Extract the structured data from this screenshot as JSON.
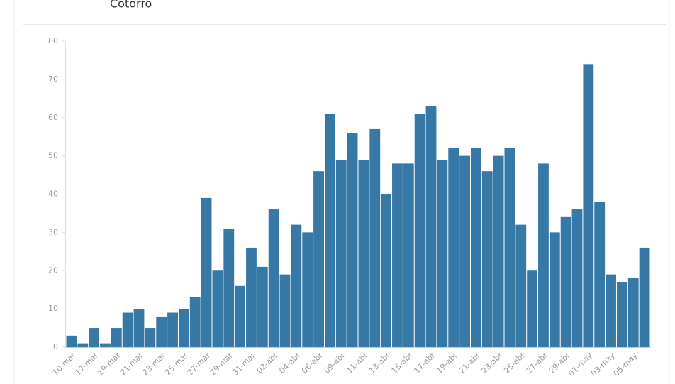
{
  "chart_data": {
    "type": "bar",
    "title": "Cotorro",
    "categories": [
      "10-mar",
      null,
      "17-mar",
      null,
      "19-mar",
      null,
      "21-mar",
      null,
      "23-mar",
      null,
      "25-mar",
      null,
      "27-mar",
      null,
      "29-mar",
      null,
      "31-mar",
      null,
      "02-abr",
      null,
      "04-abr",
      null,
      "06-abr",
      null,
      "09-abr",
      null,
      "11-abr",
      null,
      "13-abr",
      null,
      "15-abr",
      null,
      "17-abr",
      null,
      "19-abr",
      null,
      "21-abr",
      null,
      "23-abr",
      null,
      "25-abr",
      null,
      "27-abr",
      null,
      "29-abr",
      null,
      "01-may",
      null,
      "03-may",
      null,
      "05-may",
      null
    ],
    "values": [
      3,
      1,
      5,
      1,
      5,
      9,
      10,
      5,
      8,
      9,
      10,
      13,
      39,
      20,
      31,
      16,
      26,
      21,
      36,
      19,
      32,
      30,
      46,
      61,
      49,
      56,
      49,
      57,
      40,
      48,
      48,
      61,
      63,
      49,
      52,
      50,
      52,
      46,
      50,
      52,
      32,
      20,
      48,
      30,
      34,
      36,
      74,
      38,
      19,
      17,
      18,
      26
    ],
    "color": "#3679a6",
    "ylim": [
      0,
      80
    ],
    "yticks": [
      0,
      10,
      20,
      30,
      40,
      50,
      60,
      70,
      80
    ],
    "grid": false
  }
}
